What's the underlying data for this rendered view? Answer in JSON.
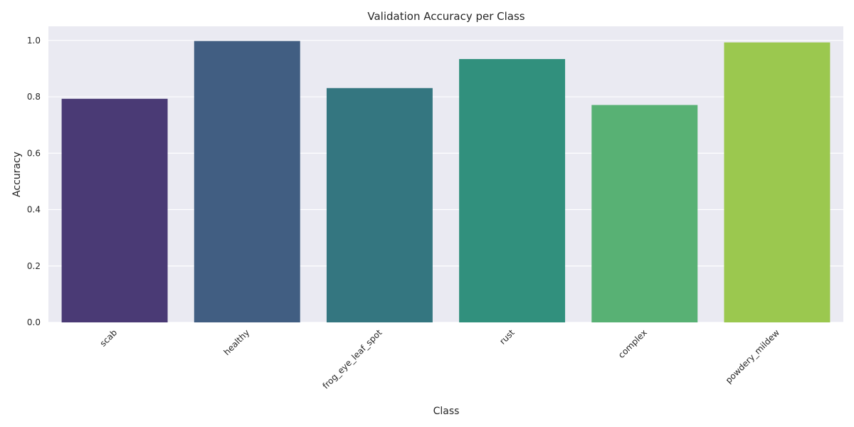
{
  "chart_data": {
    "type": "bar",
    "title": "Validation Accuracy per Class",
    "xlabel": "Class",
    "ylabel": "Accuracy",
    "categories": [
      "scab",
      "healthy",
      "frog_eye_leaf_spot",
      "rust",
      "complex",
      "powdery_mildew"
    ],
    "values": [
      0.793,
      0.998,
      0.831,
      0.934,
      0.771,
      0.993
    ],
    "colors": [
      "#4a3a75",
      "#415e82",
      "#347680",
      "#31907d",
      "#58b174",
      "#9bc84f"
    ],
    "ylim": [
      0,
      1.05
    ],
    "yticks": [
      0.0,
      0.2,
      0.4,
      0.6,
      0.8,
      1.0
    ],
    "ytick_labels": [
      "0.0",
      "0.2",
      "0.4",
      "0.6",
      "0.8",
      "1.0"
    ],
    "grid": true,
    "grid_axis": "y",
    "plot_background": "#eaeaf2",
    "xtick_rotation": 45
  }
}
